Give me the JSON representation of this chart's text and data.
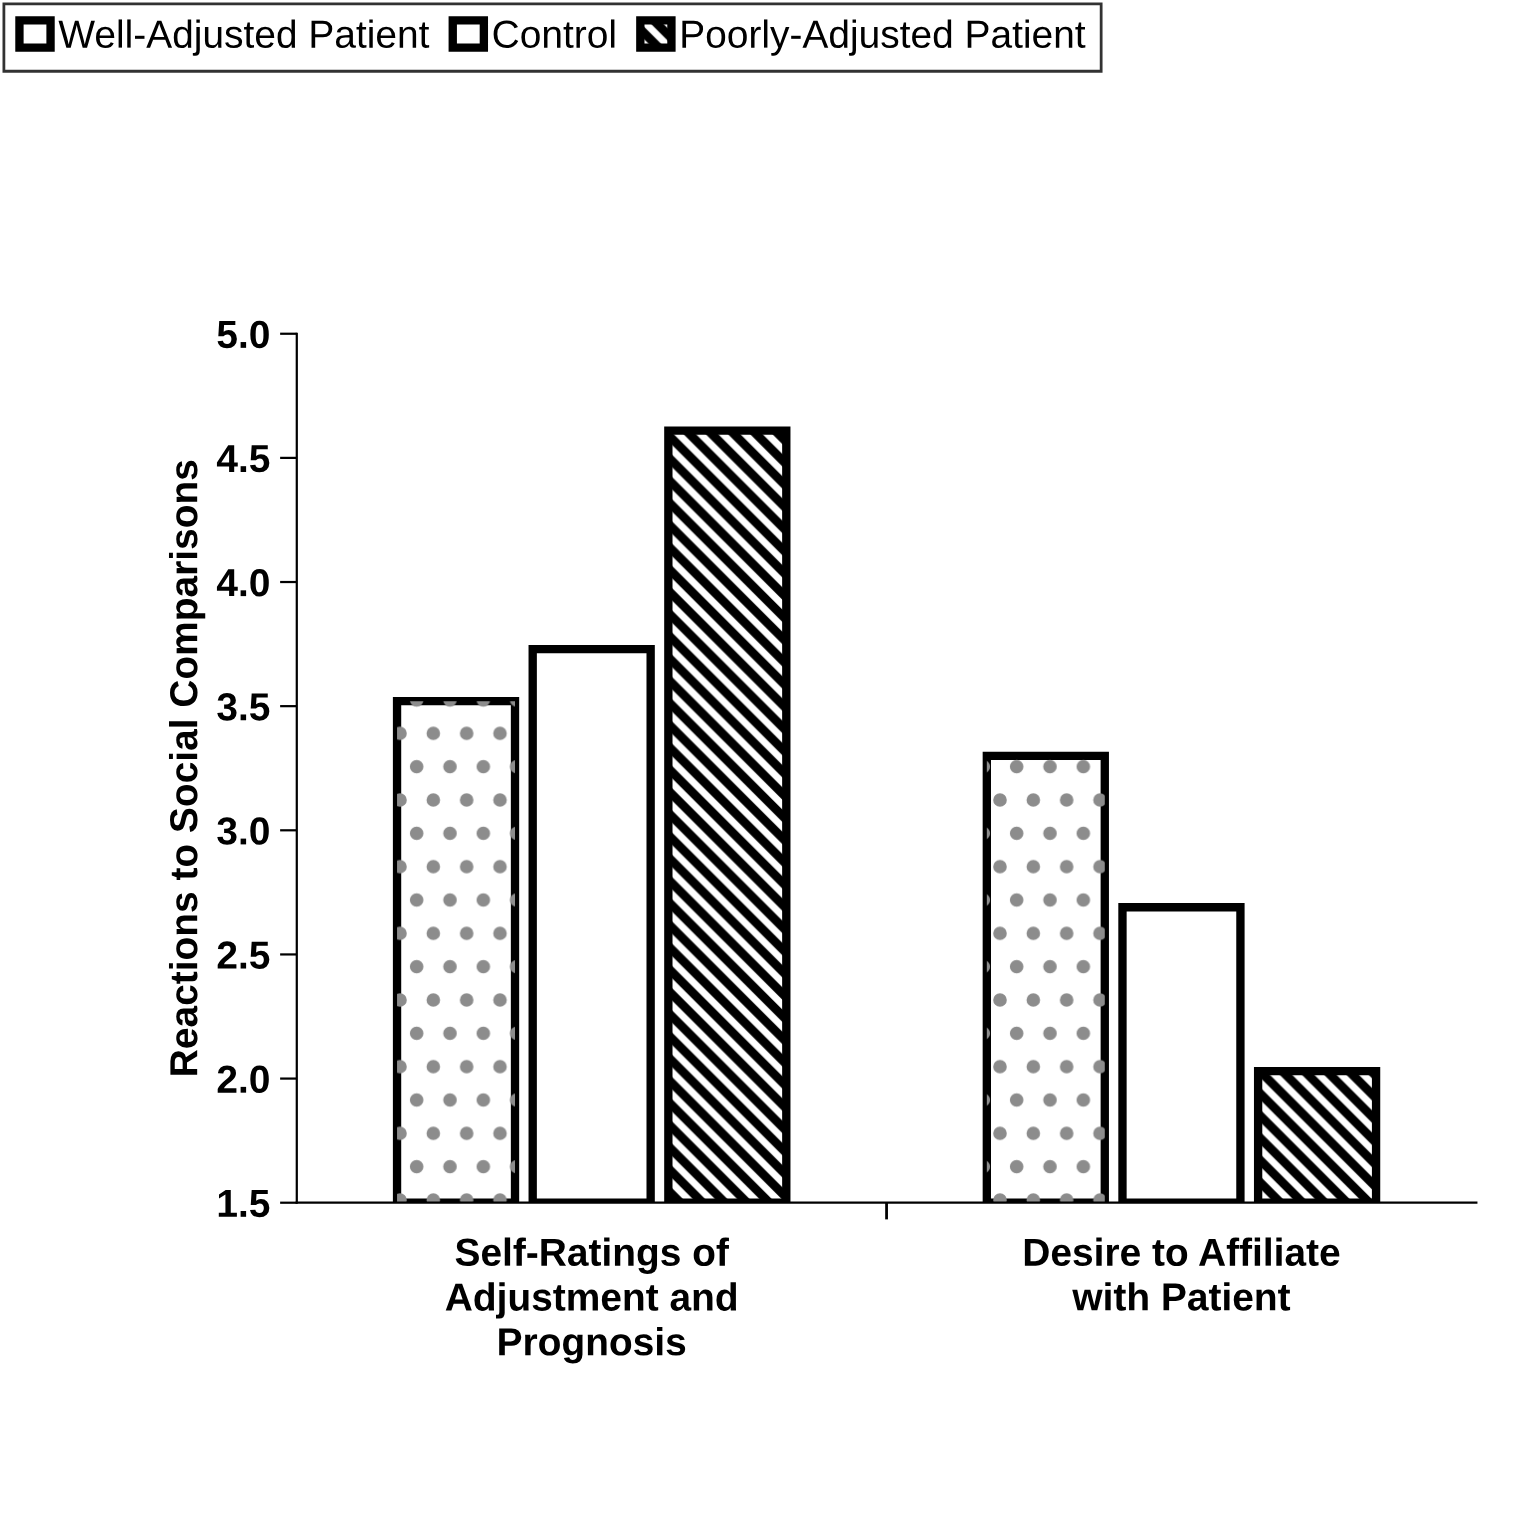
{
  "chart_data": {
    "type": "bar",
    "ylabel": "Reactions to Social Comparisons",
    "categories": [
      "Self-Ratings of Adjustment and Prognosis",
      "Desire to Affiliate with Patient"
    ],
    "series": [
      {
        "name": "Well-Adjusted Patient",
        "color": "#ffffff",
        "values": [
          3.52,
          3.3
        ]
      },
      {
        "name": "Control",
        "color": "#ffffff",
        "values": [
          3.73,
          2.69
        ]
      },
      {
        "name": "Poorly-Adjusted Patient",
        "color": "#000000",
        "values": [
          4.61,
          2.03
        ]
      }
    ],
    "ylim": [
      1.5,
      5.0
    ],
    "yticks": [
      1.5,
      {
        "value": 2,
        "label": "2.0"
      },
      2.5,
      {
        "value": 3,
        "label": "3.0"
      },
      3.5,
      {
        "value": 4,
        "label": "4.0"
      },
      4.5,
      {
        "value": 5,
        "label": "5.0"
      }
    ],
    "grid": false,
    "legend": "top"
  }
}
